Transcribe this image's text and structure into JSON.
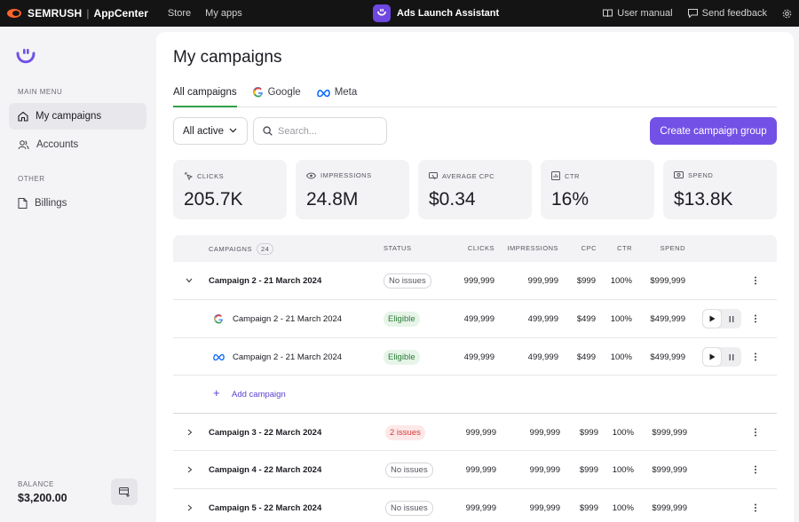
{
  "topbar": {
    "brand": "SEMRUSH",
    "app_center": "AppCenter",
    "nav": [
      "Store",
      "My apps"
    ],
    "app_title": "Ads Launch Assistant",
    "user_manual": "User manual",
    "send_feedback": "Send feedback"
  },
  "sidebar": {
    "main_menu": "MAIN MENU",
    "items": [
      "My campaigns",
      "Accounts"
    ],
    "other": "OTHER",
    "other_items": [
      "Billings"
    ],
    "balance_label": "BALANCE",
    "balance_value": "$3,200.00"
  },
  "main": {
    "title": "My campaigns",
    "tabs": [
      "All campaigns",
      "Google",
      "Meta"
    ],
    "filter": "All active",
    "search_placeholder": "Search...",
    "create_button": "Create campaign group",
    "stats": [
      {
        "label": "CLICKS",
        "value": "205.7K",
        "icon": "clicks-icon"
      },
      {
        "label": "IMPRESSIONS",
        "value": "24.8M",
        "icon": "eye-icon"
      },
      {
        "label": "AVERAGE CPC",
        "value": "$0.34",
        "icon": "cpc-icon"
      },
      {
        "label": "CTR",
        "value": "16%",
        "icon": "ctr-icon"
      },
      {
        "label": "SPEND",
        "value": "$13.8K",
        "icon": "spend-icon"
      }
    ]
  },
  "table": {
    "headers": {
      "campaigns": "CAMPAIGNS",
      "count": "24",
      "status": "STATUS",
      "clicks": "CLICKS",
      "impressions": "IMPRESSIONS",
      "cpc": "CPC",
      "ctr": "CTR",
      "spend": "SPEND"
    },
    "rows": [
      {
        "name": "Campaign 2 - 21 March 2024",
        "status": "No issues",
        "clicks": "999,999",
        "impressions": "999,999",
        "cpc": "$999",
        "ctr": "100%",
        "spend": "$999,999"
      },
      {
        "name": "Campaign 2 - 21 March 2024",
        "status": "Eligible",
        "clicks": "499,999",
        "impressions": "499,999",
        "cpc": "$499",
        "ctr": "100%",
        "spend": "$499,999"
      },
      {
        "name": "Campaign 2 - 21 March 2024",
        "status": "Eligible",
        "clicks": "499,999",
        "impressions": "499,999",
        "cpc": "$499",
        "ctr": "100%",
        "spend": "$499,999"
      },
      {
        "name": "Campaign 3 - 22 March 2024",
        "status": "2 issues",
        "clicks": "999,999",
        "impressions": "999,999",
        "cpc": "$999",
        "ctr": "100%",
        "spend": "$999,999"
      },
      {
        "name": "Campaign 4 - 22 March 2024",
        "status": "No issues",
        "clicks": "999,999",
        "impressions": "999,999",
        "cpc": "$999",
        "ctr": "100%",
        "spend": "$999,999"
      },
      {
        "name": "Campaign 5 - 22 March 2024",
        "status": "No issues",
        "clicks": "999,999",
        "impressions": "999,999",
        "cpc": "$999",
        "ctr": "100%",
        "spend": "$999,999"
      }
    ],
    "add_campaign": "Add campaign"
  },
  "colors": {
    "accent": "#7351e6",
    "success": "#2ea24a",
    "error": "#d43a3a"
  }
}
